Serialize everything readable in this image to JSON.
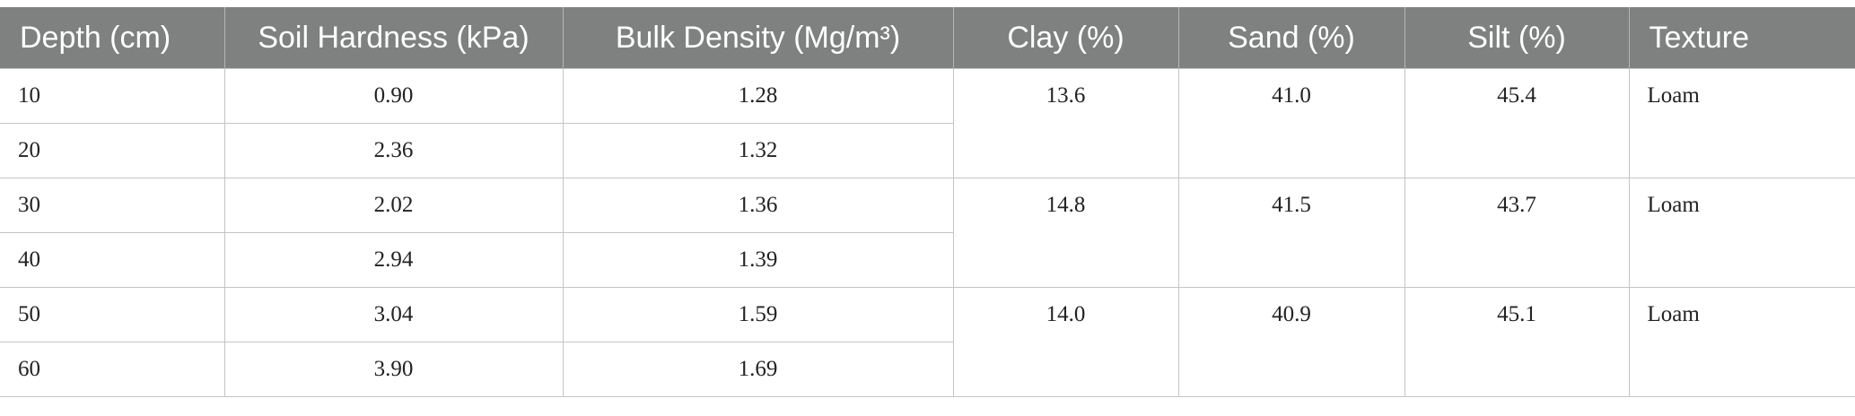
{
  "table": {
    "header": [
      "Depth (cm)",
      "Soil Hardness (kPa)",
      "Bulk Density (Mg/m³)",
      "Clay (%)",
      "Sand (%)",
      "Silt (%)",
      "Texture"
    ],
    "rows": [
      [
        "10",
        "0.90",
        "1.28"
      ],
      [
        "20",
        "2.36",
        "1.32"
      ],
      [
        "30",
        "2.02",
        "1.36"
      ],
      [
        "40",
        "2.94",
        "1.39"
      ],
      [
        "50",
        "3.04",
        "1.59"
      ],
      [
        "60",
        "3.90",
        "1.69"
      ]
    ],
    "merged": [
      [
        "13.6",
        "41.0",
        "45.4",
        "Loam"
      ],
      [
        "14.8",
        "41.5",
        "43.7",
        "Loam"
      ],
      [
        "14.0",
        "40.9",
        "45.1",
        "Loam"
      ]
    ]
  }
}
